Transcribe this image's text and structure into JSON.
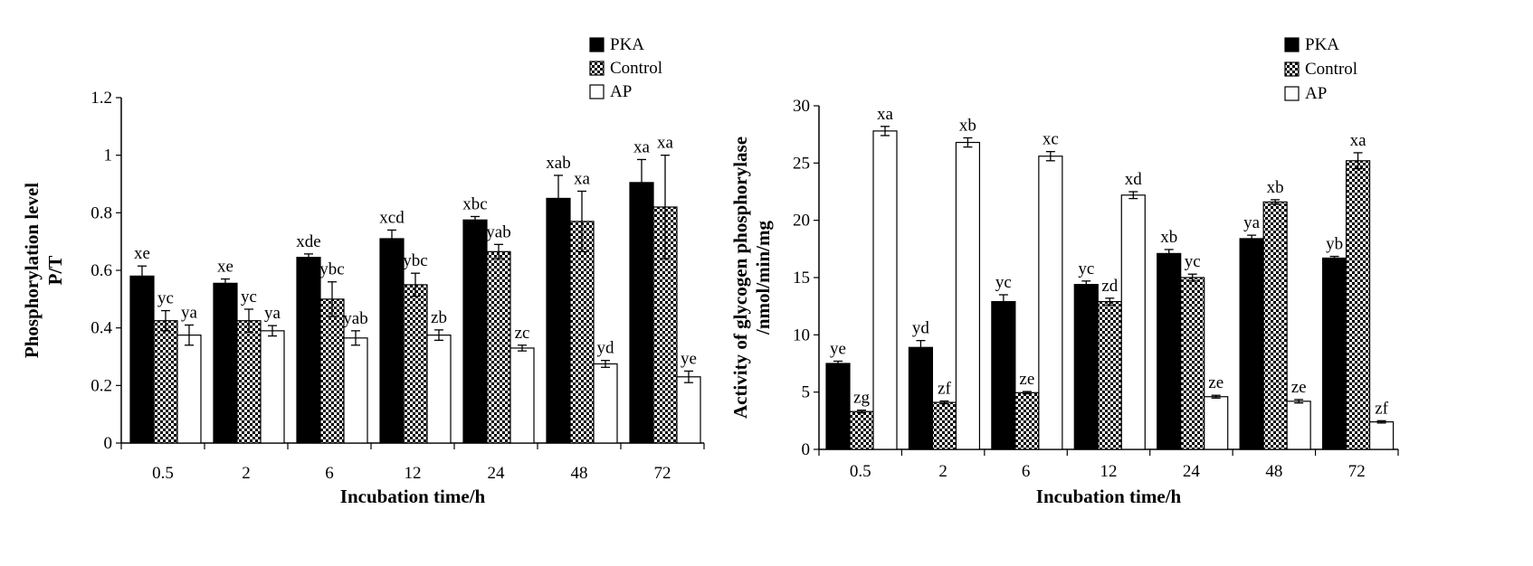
{
  "chart_data": [
    {
      "type": "bar",
      "xlabel": "Incubation time/h",
      "ylabel_lines": [
        "Phosphorylation level",
        "P/T"
      ],
      "ylim": [
        0,
        1.2
      ],
      "yticks": [
        "0",
        "0.2",
        "0.4",
        "0.6",
        "0.8",
        "1",
        "1.2"
      ],
      "categories": [
        "0.5",
        "2",
        "6",
        "12",
        "24",
        "48",
        "72"
      ],
      "legend_position": "top-right",
      "series": [
        {
          "name": "PKA",
          "fill": "#000000",
          "values": [
            0.58,
            0.555,
            0.645,
            0.71,
            0.775,
            0.85,
            0.905
          ],
          "errors": [
            0.035,
            0.015,
            0.012,
            0.03,
            0.012,
            0.08,
            0.08
          ],
          "labels": [
            "xe",
            "xe",
            "xde",
            "xcd",
            "xbc",
            "xab",
            "xa"
          ]
        },
        {
          "name": "Control",
          "fill": "hatch",
          "values": [
            0.425,
            0.425,
            0.5,
            0.55,
            0.665,
            0.77,
            0.82
          ],
          "errors": [
            0.035,
            0.04,
            0.06,
            0.04,
            0.025,
            0.105,
            0.18
          ],
          "labels": [
            "yc",
            "yc",
            "ybc",
            "ybc",
            "yab",
            "xa",
            "xa"
          ]
        },
        {
          "name": "AP",
          "fill": "#ffffff",
          "values": [
            0.375,
            0.39,
            0.365,
            0.375,
            0.33,
            0.275,
            0.23
          ],
          "errors": [
            0.035,
            0.018,
            0.025,
            0.018,
            0.01,
            0.012,
            0.02
          ],
          "labels": [
            "ya",
            "ya",
            "yab",
            "zb",
            "zc",
            "yd",
            "ye"
          ]
        }
      ]
    },
    {
      "type": "bar",
      "xlabel": "Incubation time/h",
      "ylabel_lines": [
        "Activity of glycogen phosphorylase",
        "/nmol/min/mg"
      ],
      "ylim": [
        0,
        30
      ],
      "yticks": [
        "0",
        "5",
        "10",
        "15",
        "20",
        "25",
        "30"
      ],
      "categories": [
        "0.5",
        "2",
        "6",
        "12",
        "24",
        "48",
        "72"
      ],
      "legend_position": "top-right",
      "series": [
        {
          "name": "PKA",
          "fill": "#000000",
          "values": [
            7.5,
            8.9,
            12.9,
            14.4,
            17.1,
            18.4,
            16.7
          ],
          "errors": [
            0.2,
            0.6,
            0.6,
            0.3,
            0.35,
            0.3,
            0.15
          ],
          "labels": [
            "ye",
            "yd",
            "yc",
            "yc",
            "xb",
            "ya",
            "yb"
          ]
        },
        {
          "name": "Control",
          "fill": "hatch",
          "values": [
            3.3,
            4.1,
            4.95,
            12.9,
            15.0,
            21.6,
            25.2
          ],
          "errors": [
            0.12,
            0.12,
            0.1,
            0.3,
            0.3,
            0.2,
            0.7
          ],
          "labels": [
            "zg",
            "zf",
            "ze",
            "zd",
            "yc",
            "xb",
            "xa"
          ]
        },
        {
          "name": "AP",
          "fill": "#ffffff",
          "values": [
            27.8,
            26.8,
            25.6,
            22.2,
            4.6,
            4.2,
            2.4
          ],
          "errors": [
            0.4,
            0.4,
            0.4,
            0.3,
            0.12,
            0.15,
            0.1
          ],
          "labels": [
            "xa",
            "xb",
            "xc",
            "xd",
            "ze",
            "ze",
            "zf"
          ]
        }
      ]
    }
  ]
}
